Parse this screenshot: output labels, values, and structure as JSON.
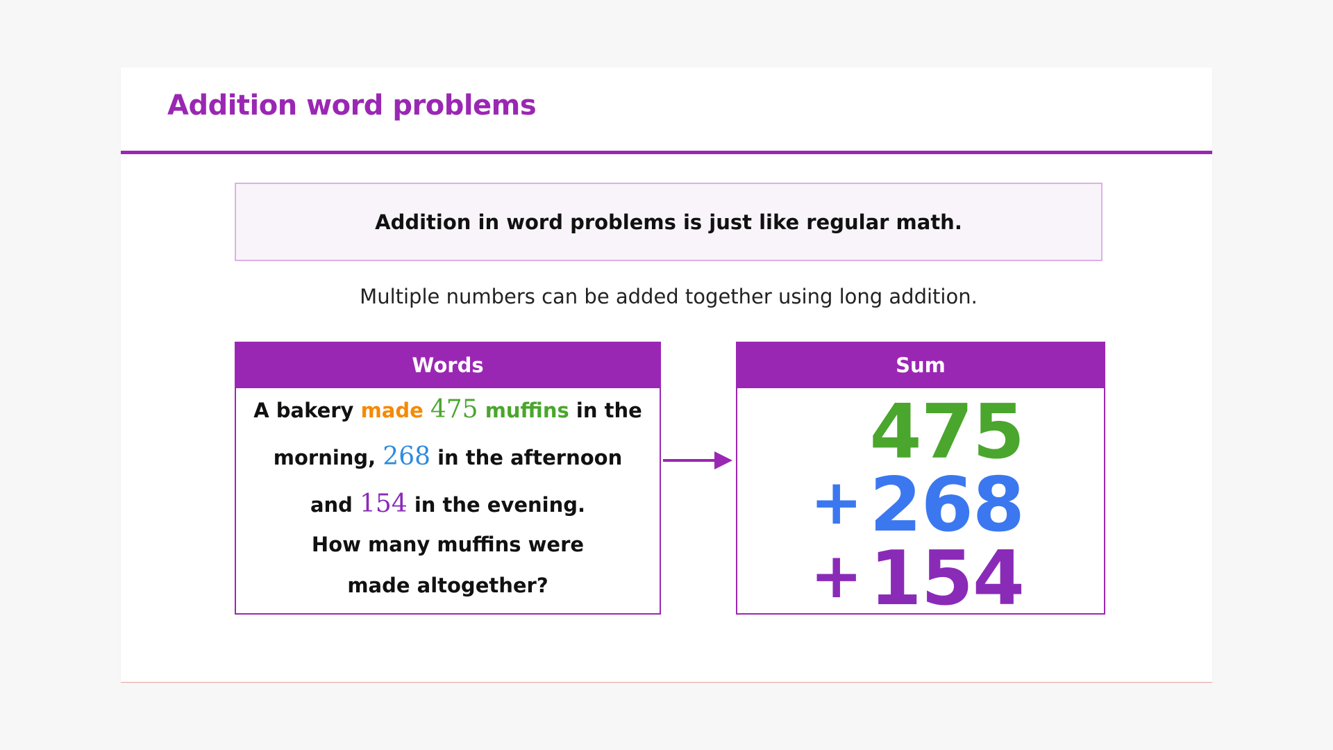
{
  "title": "Addition word problems",
  "callout": "Addition in word problems is just like regular math.",
  "subtitle": "Multiple numbers can be added together using long addition.",
  "words_panel": {
    "header": "Words",
    "line1": {
      "a": "A bakery ",
      "b": "made ",
      "c": "475",
      "d": " muffins",
      "e": " in the"
    },
    "line2": {
      "a": "morning, ",
      "b": "268",
      "c": " in the afternoon"
    },
    "line3": {
      "a": "and ",
      "b": "154",
      "c": " in the evening."
    },
    "line4": "How many muffins were",
    "line5": "made altogether?"
  },
  "sum_panel": {
    "header": "Sum",
    "row1": "475",
    "row2_op": "+",
    "row2": "268",
    "row3_op": "+",
    "row3": "154"
  },
  "colors": {
    "accent": "#9a27b3",
    "orange": "#f58a07",
    "green": "#4aa62d",
    "blue": "#2d8be0",
    "blue_sum": "#3b78f0",
    "purple": "#8a2bb8"
  },
  "icons": {
    "arrow": "arrow-right-icon"
  }
}
